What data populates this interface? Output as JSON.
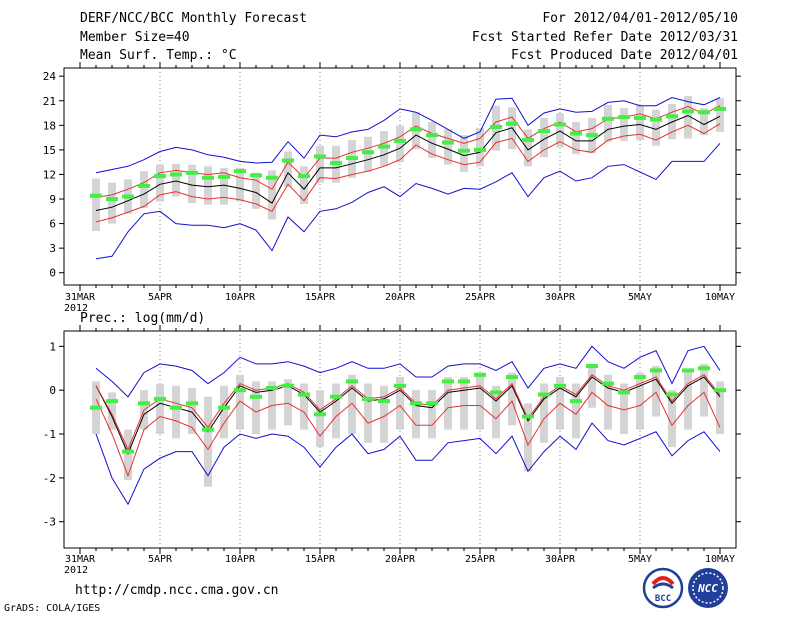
{
  "header": {
    "title": "DERF/NCC/BCC Monthly Forecast",
    "member_size": "Member Size=40",
    "variable": "Mean Surf. Temp.: °C",
    "for_range": "For 2012/04/01-2012/05/10",
    "refer_date": "Fcst Started Refer Date 2012/03/31",
    "produced_date": "Fcst Produced Date 2012/04/01"
  },
  "precip_label": "Prec.: log(mm/d)",
  "footer": {
    "url": "http://cmdp.ncc.cma.gov.cn",
    "credit": "GrADS: COLA/IGES",
    "logo_left_text": "BCC",
    "logo_right_text": "NCC"
  },
  "x_axis": {
    "start_date": "2012-03-31",
    "days": 41,
    "ticks": [
      {
        "day": 0,
        "label": "31MAR",
        "sub": "2012"
      },
      {
        "day": 5,
        "label": "5APR"
      },
      {
        "day": 10,
        "label": "10APR"
      },
      {
        "day": 15,
        "label": "15APR"
      },
      {
        "day": 20,
        "label": "20APR"
      },
      {
        "day": 25,
        "label": "25APR"
      },
      {
        "day": 30,
        "label": "30APR"
      },
      {
        "day": 35,
        "label": "5MAY"
      },
      {
        "day": 40,
        "label": "10MAY"
      }
    ]
  },
  "chart_data": [
    {
      "type": "line",
      "name": "temperature",
      "title": "Mean Surf. Temp.: °C",
      "ylim": [
        -1.5,
        25
      ],
      "yticks": [
        0,
        3,
        6,
        9,
        12,
        15,
        18,
        21,
        24
      ],
      "x_day": [
        1,
        2,
        3,
        4,
        5,
        6,
        7,
        8,
        9,
        10,
        11,
        12,
        13,
        14,
        15,
        16,
        17,
        18,
        19,
        20,
        21,
        22,
        23,
        24,
        25,
        26,
        27,
        28,
        29,
        30,
        31,
        32,
        33,
        34,
        35,
        36,
        37,
        38,
        39,
        40
      ],
      "series": [
        {
          "name": "ensemble_mean",
          "color": "#000000",
          "values": [
            7.6,
            8.0,
            8.8,
            9.6,
            10.8,
            11.2,
            10.7,
            10.5,
            10.7,
            10.3,
            9.8,
            8.5,
            12.2,
            10.2,
            12.8,
            12.8,
            13.3,
            13.8,
            14.4,
            15.2,
            16.8,
            15.8,
            15.1,
            14.3,
            14.7,
            17.1,
            17.7,
            15.0,
            16.3,
            17.3,
            16.1,
            16.1,
            17.5,
            17.9,
            18.1,
            17.5,
            18.4,
            19.2,
            18.1,
            19.1
          ]
        },
        {
          "name": "upper_stat",
          "color": "#e83030",
          "values": [
            9.2,
            9.5,
            10.2,
            11.0,
            12.2,
            12.5,
            12.2,
            12.0,
            12.2,
            11.6,
            11.3,
            10.2,
            13.5,
            11.6,
            14.0,
            14.0,
            14.7,
            15.2,
            15.8,
            16.6,
            17.9,
            17.0,
            16.4,
            15.8,
            16.4,
            18.4,
            19.0,
            16.4,
            17.6,
            18.4,
            17.2,
            17.6,
            18.8,
            19.0,
            19.4,
            18.8,
            19.6,
            20.3,
            19.4,
            20.4
          ]
        },
        {
          "name": "lower_stat",
          "color": "#e83030",
          "values": [
            6.2,
            6.7,
            7.4,
            8.1,
            9.5,
            9.9,
            9.3,
            9.0,
            9.2,
            8.9,
            8.4,
            7.5,
            10.8,
            8.8,
            11.6,
            11.5,
            12.0,
            12.4,
            13.0,
            13.8,
            15.6,
            14.5,
            13.8,
            13.2,
            13.5,
            15.9,
            16.4,
            13.6,
            15.0,
            16.0,
            15.0,
            14.7,
            16.2,
            16.7,
            16.9,
            16.2,
            17.2,
            18.0,
            17.0,
            18.2
          ]
        },
        {
          "name": "max",
          "color": "#1010d0",
          "values": [
            12.2,
            12.6,
            13.0,
            13.8,
            14.8,
            15.3,
            15.0,
            14.4,
            14.1,
            13.6,
            13.4,
            13.5,
            16.0,
            14.0,
            16.8,
            16.6,
            17.2,
            17.5,
            18.6,
            20.0,
            19.6,
            18.6,
            17.5,
            16.4,
            17.2,
            21.2,
            21.3,
            18.0,
            19.5,
            20.0,
            19.6,
            19.7,
            20.8,
            21.0,
            20.4,
            20.4,
            21.4,
            20.9,
            20.5,
            21.4
          ]
        },
        {
          "name": "min",
          "color": "#1010d0",
          "values": [
            1.7,
            2.0,
            5.0,
            7.2,
            7.5,
            6.0,
            5.8,
            5.8,
            5.5,
            6.0,
            5.2,
            2.7,
            6.8,
            5.0,
            7.5,
            7.8,
            8.6,
            9.8,
            10.5,
            9.3,
            10.9,
            10.3,
            9.6,
            10.3,
            10.2,
            11.1,
            12.2,
            9.3,
            11.6,
            12.4,
            11.2,
            11.6,
            13.0,
            13.2,
            12.3,
            11.4,
            13.6,
            13.6,
            13.6,
            15.8
          ]
        },
        {
          "name": "observed_climatology",
          "color": "#44ee44",
          "values": [
            9.4,
            9.0,
            9.3,
            10.6,
            11.8,
            12.0,
            12.2,
            11.6,
            11.7,
            12.4,
            11.9,
            11.6,
            13.7,
            11.8,
            14.2,
            13.4,
            14.0,
            14.7,
            15.4,
            16.1,
            17.5,
            16.8,
            15.9,
            14.9,
            15.0,
            17.8,
            18.2,
            16.2,
            17.3,
            18.1,
            17.0,
            16.8,
            18.8,
            19.0,
            18.9,
            18.7,
            19.1,
            19.7,
            19.6,
            20.0
          ]
        }
      ],
      "box_range": {
        "low": [
          5.1,
          6.0,
          7.2,
          7.9,
          8.7,
          9.3,
          8.5,
          8.3,
          8.3,
          8.7,
          7.8,
          6.5,
          10.5,
          8.4,
          11.0,
          11.0,
          11.6,
          12.3,
          13.0,
          13.5,
          15.1,
          14.0,
          13.2,
          12.3,
          13.0,
          14.9,
          15.1,
          13.0,
          14.1,
          15.3,
          14.5,
          14.6,
          16.0,
          16.1,
          16.2,
          15.5,
          16.3,
          16.4,
          16.8,
          17.2
        ],
        "high": [
          11.5,
          11.0,
          11.4,
          12.4,
          13.2,
          13.3,
          13.2,
          13.0,
          12.8,
          12.8,
          12.2,
          12.5,
          14.8,
          13.0,
          15.5,
          15.5,
          16.2,
          16.6,
          17.3,
          18.0,
          19.6,
          18.4,
          17.5,
          16.8,
          17.7,
          20.4,
          20.2,
          17.5,
          18.9,
          19.5,
          18.4,
          18.9,
          20.5,
          20.1,
          20.4,
          19.9,
          20.6,
          21.6,
          20.1,
          21.3
        ]
      }
    },
    {
      "type": "line",
      "name": "precipitation",
      "title": "Prec.: log(mm/d)",
      "ylim": [
        -3.6,
        1.35
      ],
      "yticks": [
        -3,
        -2,
        -1,
        0,
        1
      ],
      "x_day": [
        1,
        2,
        3,
        4,
        5,
        6,
        7,
        8,
        9,
        10,
        11,
        12,
        13,
        14,
        15,
        16,
        17,
        18,
        19,
        20,
        21,
        22,
        23,
        24,
        25,
        26,
        27,
        28,
        29,
        30,
        31,
        32,
        33,
        34,
        35,
        36,
        37,
        38,
        39,
        40
      ],
      "series": [
        {
          "name": "ensemble_mean",
          "color": "#000000",
          "values": [
            0.1,
            -0.6,
            -1.45,
            -0.55,
            -0.3,
            -0.4,
            -0.5,
            -0.95,
            -0.4,
            0.1,
            -0.05,
            0.0,
            0.1,
            -0.1,
            -0.5,
            -0.25,
            0.05,
            -0.25,
            -0.2,
            0.0,
            -0.35,
            -0.4,
            -0.05,
            0.0,
            0.05,
            -0.25,
            0.1,
            -0.7,
            -0.2,
            0.05,
            -0.15,
            0.3,
            0.05,
            -0.05,
            0.1,
            0.25,
            -0.3,
            0.1,
            0.3,
            -0.15
          ]
        },
        {
          "name": "upper_stat",
          "color": "#e83030",
          "values": [
            0.1,
            -0.55,
            -1.35,
            -0.45,
            -0.2,
            -0.3,
            -0.4,
            -0.85,
            -0.3,
            0.15,
            0.0,
            0.05,
            0.15,
            -0.05,
            -0.45,
            -0.2,
            0.1,
            -0.2,
            -0.15,
            0.05,
            -0.3,
            -0.35,
            0.0,
            0.05,
            0.1,
            -0.2,
            0.15,
            -0.65,
            -0.15,
            0.1,
            -0.1,
            0.35,
            0.1,
            0.0,
            0.15,
            0.3,
            -0.25,
            0.15,
            0.35,
            -0.1
          ]
        },
        {
          "name": "lower_stat",
          "color": "#e83030",
          "values": [
            -0.2,
            -1.0,
            -1.95,
            -0.9,
            -0.6,
            -0.7,
            -0.85,
            -1.35,
            -0.75,
            -0.25,
            -0.5,
            -0.35,
            -0.3,
            -0.5,
            -1.05,
            -0.6,
            -0.3,
            -0.75,
            -0.6,
            -0.35,
            -0.8,
            -0.8,
            -0.4,
            -0.35,
            -0.35,
            -0.65,
            -0.25,
            -1.25,
            -0.65,
            -0.3,
            -0.55,
            -0.05,
            -0.35,
            -0.45,
            -0.35,
            -0.05,
            -0.8,
            -0.35,
            -0.05,
            -0.85
          ]
        },
        {
          "name": "max",
          "color": "#1010d0",
          "values": [
            0.5,
            0.2,
            -0.15,
            0.4,
            0.6,
            0.55,
            0.45,
            0.15,
            0.4,
            0.75,
            0.6,
            0.6,
            0.65,
            0.55,
            0.4,
            0.5,
            0.65,
            0.5,
            0.5,
            0.6,
            0.3,
            0.3,
            0.55,
            0.6,
            0.6,
            0.45,
            0.65,
            0.05,
            0.5,
            0.6,
            0.5,
            1.0,
            0.65,
            0.5,
            0.75,
            0.9,
            0.15,
            0.9,
            1.0,
            0.45
          ]
        },
        {
          "name": "min",
          "color": "#1010d0",
          "values": [
            -1.0,
            -2.0,
            -2.6,
            -1.8,
            -1.55,
            -1.4,
            -1.4,
            -1.95,
            -1.3,
            -1.0,
            -1.1,
            -1.0,
            -1.05,
            -1.3,
            -1.75,
            -1.3,
            -1.0,
            -1.45,
            -1.35,
            -1.05,
            -1.6,
            -1.6,
            -1.2,
            -1.15,
            -1.1,
            -1.45,
            -1.05,
            -1.85,
            -1.4,
            -1.05,
            -1.35,
            -0.75,
            -1.15,
            -1.25,
            -1.1,
            -0.95,
            -1.5,
            -1.15,
            -0.95,
            -1.4
          ]
        },
        {
          "name": "observed_climatology",
          "color": "#44ee44",
          "values": [
            -0.4,
            -0.25,
            -1.4,
            -0.3,
            -0.2,
            -0.4,
            -0.3,
            -0.9,
            -0.4,
            0.0,
            -0.15,
            0.05,
            0.1,
            -0.1,
            -0.55,
            -0.15,
            0.2,
            -0.2,
            -0.25,
            0.1,
            -0.3,
            -0.3,
            0.2,
            0.2,
            0.35,
            -0.05,
            0.3,
            -0.6,
            -0.1,
            0.1,
            -0.25,
            0.55,
            0.15,
            -0.05,
            0.3,
            0.45,
            -0.1,
            0.45,
            0.5,
            0.0
          ]
        }
      ],
      "box_range": {
        "low": [
          -1.0,
          -0.9,
          -2.05,
          -0.9,
          -1.0,
          -1.1,
          -1.0,
          -2.2,
          -1.1,
          -0.9,
          -1.0,
          -0.9,
          -0.8,
          -0.9,
          -1.3,
          -1.1,
          -1.0,
          -1.2,
          -1.2,
          -0.9,
          -1.1,
          -1.1,
          -0.9,
          -0.9,
          -0.9,
          -1.1,
          -0.8,
          -1.85,
          -1.2,
          -0.9,
          -1.1,
          -0.4,
          -0.9,
          -1.0,
          -0.9,
          -0.6,
          -1.3,
          -0.9,
          -0.6,
          -1.0
        ],
        "high": [
          0.2,
          -0.05,
          -0.9,
          0.0,
          0.15,
          0.1,
          0.05,
          -0.15,
          0.1,
          0.35,
          0.2,
          0.2,
          0.25,
          0.15,
          0.0,
          0.15,
          0.35,
          0.15,
          0.1,
          0.3,
          0.0,
          0.0,
          0.3,
          0.3,
          0.4,
          0.1,
          0.4,
          -0.3,
          0.15,
          0.3,
          0.15,
          0.6,
          0.35,
          0.15,
          0.4,
          0.55,
          0.0,
          0.5,
          0.6,
          0.2
        ]
      }
    }
  ]
}
